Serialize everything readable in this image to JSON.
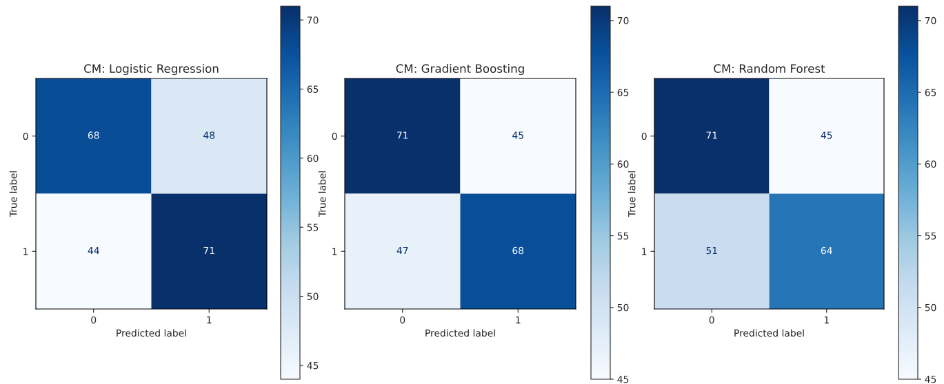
{
  "chart_data": [
    {
      "type": "heatmap",
      "title": "CM: Logistic Regression",
      "xlabel": "Predicted label",
      "ylabel": "True label",
      "categories": [
        "0",
        "1"
      ],
      "y_categories": [
        "0",
        "1"
      ],
      "cells": [
        [
          68,
          48
        ],
        [
          44,
          71
        ]
      ],
      "clim": [
        44,
        71
      ],
      "cticks": [
        45,
        50,
        55,
        60,
        65,
        70
      ],
      "data_labels": true
    },
    {
      "type": "heatmap",
      "title": "CM: Gradient Boosting",
      "xlabel": "Predicted label",
      "ylabel": "True label",
      "categories": [
        "0",
        "1"
      ],
      "y_categories": [
        "0",
        "1"
      ],
      "cells": [
        [
          71,
          45
        ],
        [
          47,
          68
        ]
      ],
      "clim": [
        45,
        71
      ],
      "cticks": [
        45,
        50,
        55,
        60,
        65,
        70
      ],
      "data_labels": true
    },
    {
      "type": "heatmap",
      "title": "CM: Random Forest",
      "xlabel": "Predicted label",
      "ylabel": "True label",
      "categories": [
        "0",
        "1"
      ],
      "y_categories": [
        "0",
        "1"
      ],
      "cells": [
        [
          71,
          45
        ],
        [
          51,
          64
        ]
      ],
      "clim": [
        45,
        71
      ],
      "cticks": [
        45,
        50,
        55,
        60,
        65,
        70
      ],
      "data_labels": true
    }
  ]
}
